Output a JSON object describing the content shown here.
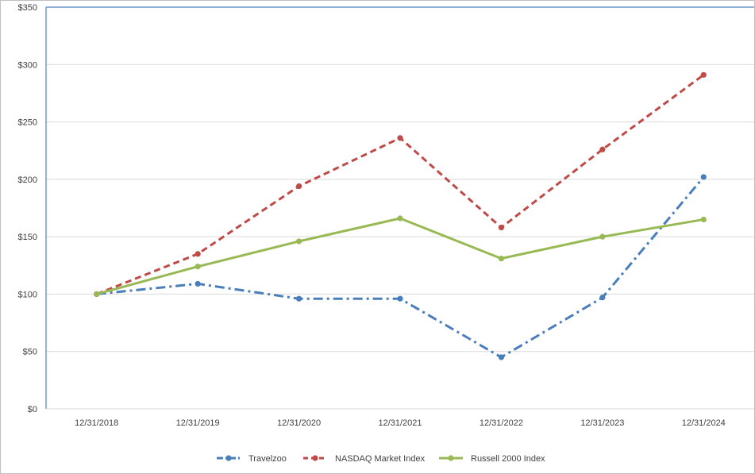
{
  "chart_data": {
    "type": "line",
    "title": "",
    "xlabel": "",
    "ylabel": "",
    "categories": [
      "12/31/2018",
      "12/31/2019",
      "12/31/2020",
      "12/31/2021",
      "12/31/2022",
      "12/31/2023",
      "12/31/2024"
    ],
    "ylim": [
      0,
      350
    ],
    "yticks": [
      0,
      50,
      100,
      150,
      200,
      250,
      300,
      350
    ],
    "ytick_labels": [
      "$0",
      "$50",
      "$100",
      "$150",
      "$200",
      "$250",
      "$300",
      "$350"
    ],
    "grid": true,
    "legend_position": "bottom",
    "series": [
      {
        "name": "Travelzoo",
        "values": [
          100,
          109,
          96,
          96,
          45,
          97,
          202
        ],
        "color": "#4a7ebb",
        "dash": "dash-dot"
      },
      {
        "name": "NASDAQ Market Index",
        "values": [
          100,
          135,
          194,
          236,
          158,
          226,
          291
        ],
        "color": "#be4b48",
        "dash": "dashed"
      },
      {
        "name": "Russell 2000 Index",
        "values": [
          100,
          124,
          146,
          166,
          131,
          150,
          165
        ],
        "color": "#98b954",
        "dash": "solid"
      }
    ]
  }
}
